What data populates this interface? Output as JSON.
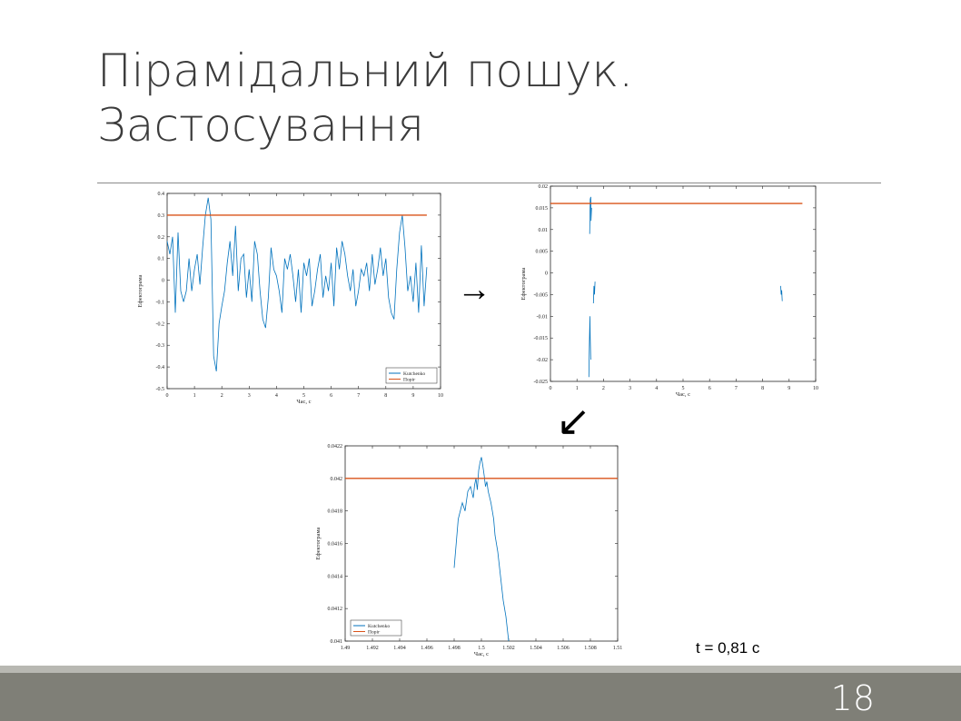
{
  "slide": {
    "title_line1": "Пірамідальний пошук.",
    "title_line2": "Застосування",
    "result_text": "t = 0,81 с",
    "slide_number": "18",
    "arrow_right": "→",
    "arrow_down_left": "↙"
  },
  "colors": {
    "signal": "#0072BD",
    "threshold": "#D95319"
  },
  "chart_data": [
    {
      "type": "line",
      "xlabel": "Час, с",
      "ylabel": "Ефектограма",
      "xlim": [
        0,
        10
      ],
      "ylim": [
        -0.5,
        0.4
      ],
      "xticks": [
        0,
        1,
        2,
        3,
        4,
        5,
        6,
        7,
        8,
        9,
        10
      ],
      "yticks": [
        -0.5,
        -0.4,
        -0.3,
        -0.2,
        -0.1,
        0,
        0.1,
        0.2,
        0.3,
        0.4
      ],
      "ytick_labels": [
        "-0.5",
        "-0.4",
        "-0.3",
        "-0.2",
        "-0.1",
        "0",
        "0.1",
        "0.2",
        "0.3",
        "0.4"
      ],
      "legend": {
        "position": "bottom-right",
        "entries": [
          "Kutchenko",
          "Поріг"
        ]
      },
      "series": [
        {
          "name": "Kutchenko",
          "x": [
            0,
            0.1,
            0.2,
            0.3,
            0.4,
            0.5,
            0.6,
            0.7,
            0.8,
            0.9,
            1.0,
            1.1,
            1.2,
            1.3,
            1.4,
            1.5,
            1.6,
            1.7,
            1.8,
            1.9,
            2.0,
            2.1,
            2.2,
            2.3,
            2.4,
            2.5,
            2.6,
            2.7,
            2.8,
            2.9,
            3.0,
            3.1,
            3.2,
            3.3,
            3.4,
            3.5,
            3.6,
            3.7,
            3.8,
            3.9,
            4.0,
            4.1,
            4.2,
            4.3,
            4.4,
            4.5,
            4.6,
            4.7,
            4.8,
            4.9,
            5.0,
            5.1,
            5.2,
            5.3,
            5.4,
            5.5,
            5.6,
            5.7,
            5.8,
            5.9,
            6.0,
            6.1,
            6.2,
            6.3,
            6.4,
            6.5,
            6.6,
            6.7,
            6.8,
            6.9,
            7.0,
            7.1,
            7.2,
            7.3,
            7.4,
            7.5,
            7.6,
            7.7,
            7.8,
            7.9,
            8.0,
            8.1,
            8.2,
            8.3,
            8.4,
            8.5,
            8.6,
            8.7,
            8.8,
            8.9,
            9.0,
            9.1,
            9.2,
            9.3,
            9.4,
            9.5
          ],
          "y": [
            0.18,
            0.12,
            0.2,
            -0.15,
            0.22,
            -0.05,
            -0.1,
            -0.05,
            0.1,
            -0.05,
            0.05,
            0.12,
            -0.02,
            0.15,
            0.3,
            0.38,
            0.28,
            -0.35,
            -0.42,
            -0.2,
            -0.12,
            -0.05,
            0.08,
            0.18,
            0.02,
            0.25,
            -0.05,
            0.1,
            0.12,
            -0.08,
            0.05,
            -0.1,
            0.18,
            0.12,
            -0.05,
            -0.18,
            -0.22,
            -0.08,
            0.15,
            0.05,
            0.02,
            -0.05,
            -0.15,
            0.1,
            0.05,
            0.12,
            0.02,
            -0.1,
            0.05,
            -0.15,
            0.08,
            0.02,
            0.1,
            -0.12,
            -0.05,
            0.05,
            0.12,
            -0.08,
            0.02,
            -0.05,
            0.08,
            -0.12,
            0.15,
            0.05,
            0.18,
            0.12,
            0.02,
            -0.05,
            0.05,
            -0.12,
            -0.05,
            0.05,
            0.02,
            0.08,
            -0.05,
            0.12,
            -0.02,
            0.05,
            0.15,
            0.02,
            0.1,
            -0.08,
            -0.15,
            -0.18,
            0.05,
            0.22,
            0.3,
            0.15,
            -0.05,
            0.02,
            -0.1,
            0.08,
            -0.15,
            0.16,
            -0.12,
            0.06
          ]
        },
        {
          "name": "Поріг",
          "x": [
            0,
            9.5
          ],
          "y": [
            0.3,
            0.3
          ]
        }
      ]
    },
    {
      "type": "line",
      "xlabel": "Час, с",
      "ylabel": "Ефектограма",
      "xlim": [
        0,
        10
      ],
      "ylim": [
        -0.025,
        0.02
      ],
      "xticks": [
        0,
        1,
        2,
        3,
        4,
        5,
        6,
        7,
        8,
        9,
        10
      ],
      "yticks": [
        -0.025,
        -0.02,
        -0.015,
        -0.01,
        -0.005,
        0,
        0.005,
        0.01,
        0.015,
        0.02
      ],
      "ytick_labels": [
        "-0.025",
        "-0.02",
        "-0.015",
        "-0.01",
        "-0.005",
        "0",
        "0.005",
        "0.01",
        "0.015",
        "0.02"
      ],
      "series": [
        {
          "name": "Kutchenko",
          "segments": [
            {
              "x": [
                1.45,
                1.47,
                1.49,
                1.5,
                1.52
              ],
              "y": [
                -0.024,
                -0.016,
                -0.01,
                -0.015,
                -0.02
              ]
            },
            {
              "x": [
                1.48,
                1.5,
                1.52,
                1.53,
                1.55
              ],
              "y": [
                0.009,
                0.017,
                0.0175,
                0.012,
                0.015
              ]
            },
            {
              "x": [
                1.62,
                1.64,
                1.66,
                1.68
              ],
              "y": [
                -0.007,
                -0.003,
                -0.005,
                -0.002
              ]
            },
            {
              "x": [
                8.68,
                8.7,
                8.72,
                8.74
              ],
              "y": [
                -0.003,
                -0.005,
                -0.004,
                -0.0065
              ]
            }
          ]
        },
        {
          "name": "Поріг",
          "x": [
            0,
            9.5
          ],
          "y": [
            0.016,
            0.016
          ]
        }
      ]
    },
    {
      "type": "line",
      "xlabel": "Час, с",
      "ylabel": "Ефектограма",
      "xlim": [
        1.49,
        1.51
      ],
      "ylim": [
        0.041,
        0.0422
      ],
      "xticks": [
        1.49,
        1.492,
        1.494,
        1.496,
        1.498,
        1.5,
        1.502,
        1.504,
        1.506,
        1.508,
        1.51
      ],
      "xtick_labels": [
        "1.49",
        "1.492",
        "1.494",
        "1.496",
        "1.498",
        "1.5",
        "1.502",
        "1.504",
        "1.506",
        "1.508",
        "1.51"
      ],
      "yticks": [
        0.041,
        0.0412,
        0.0414,
        0.0416,
        0.0418,
        0.042,
        0.0422
      ],
      "ytick_labels": [
        "0.041",
        "0.0412",
        "0.0414",
        "0.0416",
        "0.0418",
        "0.042",
        "0.0422"
      ],
      "legend": {
        "position": "bottom-left",
        "entries": [
          "Kutchenko",
          "Поріг"
        ]
      },
      "series": [
        {
          "name": "Kutchenko",
          "x": [
            1.498,
            1.4983,
            1.4986,
            1.4988,
            1.499,
            1.4992,
            1.4994,
            1.4995,
            1.4996,
            1.4997,
            1.4998,
            1.4999,
            1.5,
            1.5001,
            1.5002,
            1.5003,
            1.5004,
            1.5005,
            1.5007,
            1.5009,
            1.501,
            1.5012,
            1.5014,
            1.5016,
            1.5018,
            1.502
          ],
          "y": [
            0.04145,
            0.04175,
            0.04185,
            0.0418,
            0.04192,
            0.04195,
            0.04188,
            0.04196,
            0.042,
            0.04193,
            0.04205,
            0.0421,
            0.04213,
            0.04208,
            0.04202,
            0.04195,
            0.04198,
            0.04192,
            0.04185,
            0.04175,
            0.04165,
            0.04155,
            0.0414,
            0.04125,
            0.04115,
            0.041
          ]
        },
        {
          "name": "Поріг",
          "x": [
            1.49,
            1.51
          ],
          "y": [
            0.042,
            0.042
          ]
        }
      ]
    }
  ]
}
